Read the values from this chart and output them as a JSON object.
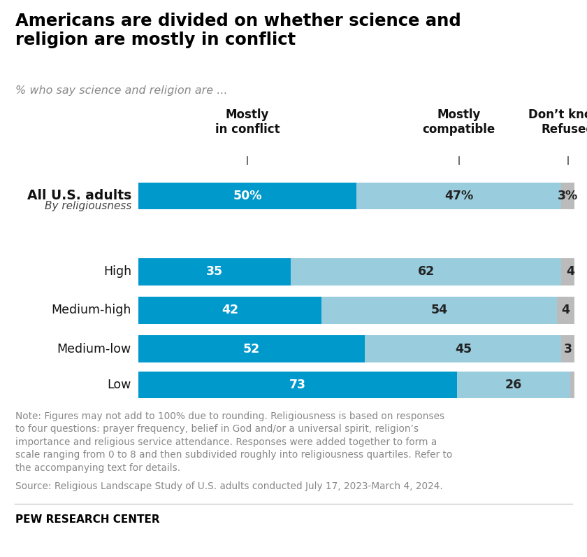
{
  "title": "Americans are divided on whether science and\nreligion are mostly in conflict",
  "subtitle": "% who say science and religion are ...",
  "col_headers": [
    "Mostly\nin conflict",
    "Mostly\ncompatible",
    "Don’t know/\nRefused"
  ],
  "rows": [
    {
      "label": "All U.S. adults",
      "conflict": 50,
      "compatible": 47,
      "dontknow": 3,
      "label_bold": true,
      "conflict_label": "50%",
      "compatible_label": "47%",
      "dontknow_label": "3%"
    },
    {
      "label": "High",
      "conflict": 35,
      "compatible": 62,
      "dontknow": 4,
      "label_bold": false,
      "conflict_label": "35",
      "compatible_label": "62",
      "dontknow_label": "4"
    },
    {
      "label": "Medium-high",
      "conflict": 42,
      "compatible": 54,
      "dontknow": 4,
      "label_bold": false,
      "conflict_label": "42",
      "compatible_label": "54",
      "dontknow_label": "4"
    },
    {
      "label": "Medium-low",
      "conflict": 52,
      "compatible": 45,
      "dontknow": 3,
      "label_bold": false,
      "conflict_label": "52",
      "compatible_label": "45",
      "dontknow_label": "3"
    },
    {
      "label": "Low",
      "conflict": 73,
      "compatible": 26,
      "dontknow": 1,
      "label_bold": false,
      "conflict_label": "73",
      "compatible_label": "26",
      "dontknow_label": ""
    }
  ],
  "color_conflict": "#0099CC",
  "color_compatible": "#99CCDD",
  "color_dontknow": "#BBBBBB",
  "color_title": "#000000",
  "color_subtitle": "#888888",
  "color_note": "#888888",
  "color_source": "#888888",
  "color_pew": "#000000",
  "note_text": "Note: Figures may not add to 100% due to rounding. Religiousness is based on responses\nto four questions: prayer frequency, belief in God and/or a universal spirit, religion’s\nimportance and religious service attendance. Responses were added together to form a\nscale ranging from 0 to 8 and then subdivided roughly into religiousness quartiles. Refer to\nthe accompanying text for details.",
  "source_text": "Source: Religious Landscape Study of U.S. adults conducted July 17, 2023-March 4, 2024.",
  "pew_text": "PEW RESEARCH CENTER",
  "religiousness_label": "By religiousness"
}
